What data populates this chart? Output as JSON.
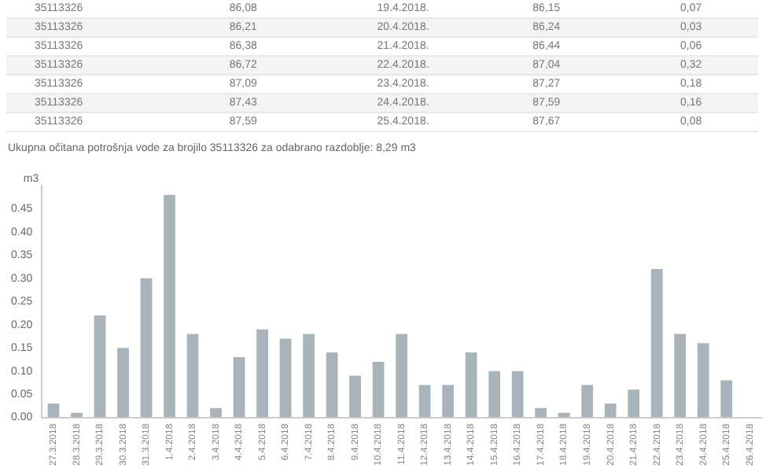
{
  "chart_data": {
    "type": "bar",
    "title": "Ukupna očitana potrošnja vode za brojilo 35113326 za odabrano razdoblje: 8,29 m3",
    "ylabel": "m3",
    "categories": [
      "27.3.2018",
      "28.3.2018",
      "29.3.2018",
      "30.3.2018",
      "31.3.2018",
      "1.4.2018",
      "2.4.2018",
      "3.4.2018",
      "4.4.2018",
      "5.4.2018",
      "6.4.2018",
      "7.4.2018",
      "8.4.2018",
      "9.4.2018",
      "10.4.2018",
      "11.4.2018",
      "12.4.2018",
      "13.4.2018",
      "14.4.2018",
      "15.4.2018",
      "16.4.2018",
      "17.4.2018",
      "18.4.2018",
      "19.4.2018",
      "20.4.2018",
      "21.4.2018",
      "22.4.2018",
      "23.4.2018",
      "24.4.2018",
      "25.4.2018",
      "26.4.2018"
    ],
    "series": [
      {
        "color": "#a9b4ba",
        "values": [
          0.03,
          0.01,
          0.22,
          0.15,
          0.3,
          0.48,
          0.18,
          0.02,
          0.13,
          0.19,
          0.17,
          0.18,
          0.14,
          0.09,
          0.12,
          0.18,
          0.07,
          0.07,
          0.14,
          0.1,
          0.1,
          0.02,
          0.01,
          0.07,
          0.03,
          0.06,
          0.32,
          0.18,
          0.16,
          0.08,
          null
        ]
      }
    ],
    "ylim": [
      0,
      0.5
    ],
    "yticks": [
      {
        "value": 0,
        "label": "0.00"
      },
      {
        "value": 0.05,
        "label": "0.05"
      },
      {
        "value": 0.1,
        "label": "0.10"
      },
      {
        "value": 0.15,
        "label": "0.15"
      },
      {
        "value": 0.2,
        "label": "0.20"
      },
      {
        "value": 0.25,
        "label": "0.25"
      },
      {
        "value": 0.3,
        "label": "0.30"
      },
      {
        "value": 0.35,
        "label": "0.35"
      },
      {
        "value": 0.4,
        "label": "0.40"
      },
      {
        "value": 0.45,
        "label": "0.45"
      }
    ],
    "grid": false,
    "legend": false,
    "annotations": [
      "35113326",
      "86,08",
      "19.4.2018.",
      "86,15",
      "0,07",
      "35113326",
      "86,21",
      "20.4.2018.",
      "86,24",
      "0,03",
      "35113326",
      "86,38",
      "21.4.2018.",
      "86,44",
      "0,06",
      "35113326",
      "86,72",
      "22.4.2018.",
      "87,04",
      "0,32",
      "35113326",
      "87,09",
      "23.4.2018.",
      "87,27",
      "0,18",
      "35113326",
      "87,43",
      "24.4.2018.",
      "87,59",
      "0,16",
      "35113326",
      "87,59",
      "25.4.2018.",
      "87,67",
      "0,08"
    ]
  }
}
